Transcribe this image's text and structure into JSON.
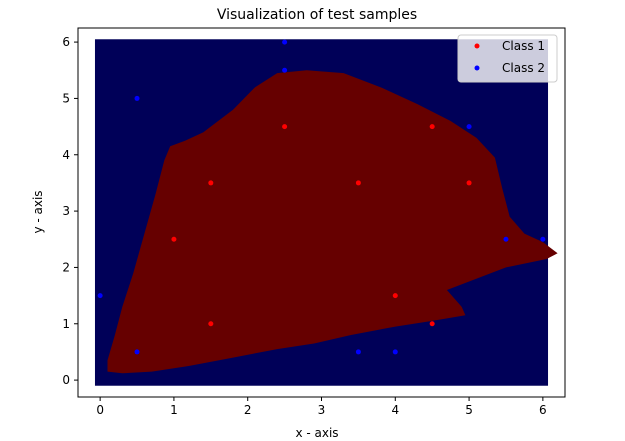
{
  "chart_data": {
    "type": "scatter",
    "title": "Visualization of test samples",
    "xlabel": "x - axis",
    "ylabel": "y - axis",
    "xlim": [
      -0.3,
      6.3
    ],
    "ylim": [
      -0.3,
      6.25
    ],
    "xticks": [
      "0",
      "1",
      "2",
      "3",
      "4",
      "5",
      "6"
    ],
    "yticks": [
      "0",
      "1",
      "2",
      "3",
      "4",
      "5",
      "6"
    ],
    "grid": false,
    "legend_position": "top-right",
    "background_region": {
      "color": "#000058",
      "x": [
        -0.07,
        6.07
      ],
      "y": [
        -0.1,
        6.05
      ]
    },
    "decision_region": {
      "color": "#660000",
      "polygon": [
        [
          0.1,
          0.15
        ],
        [
          0.1,
          0.35
        ],
        [
          0.2,
          0.8
        ],
        [
          0.3,
          1.3
        ],
        [
          0.45,
          1.9
        ],
        [
          0.6,
          2.6
        ],
        [
          0.75,
          3.3
        ],
        [
          0.87,
          3.9
        ],
        [
          0.95,
          4.15
        ],
        [
          1.15,
          4.25
        ],
        [
          1.4,
          4.4
        ],
        [
          1.8,
          4.8
        ],
        [
          2.1,
          5.2
        ],
        [
          2.4,
          5.45
        ],
        [
          2.8,
          5.5
        ],
        [
          3.3,
          5.45
        ],
        [
          3.8,
          5.2
        ],
        [
          4.3,
          4.9
        ],
        [
          4.75,
          4.6
        ],
        [
          5.1,
          4.3
        ],
        [
          5.35,
          3.95
        ],
        [
          5.45,
          3.4
        ],
        [
          5.55,
          2.9
        ],
        [
          5.75,
          2.6
        ],
        [
          6.0,
          2.45
        ],
        [
          6.2,
          2.25
        ],
        [
          6.05,
          2.15
        ],
        [
          5.5,
          2.0
        ],
        [
          5.0,
          1.75
        ],
        [
          4.7,
          1.6
        ],
        [
          4.9,
          1.3
        ],
        [
          4.95,
          1.15
        ],
        [
          4.5,
          1.05
        ],
        [
          4.0,
          0.95
        ],
        [
          3.4,
          0.8
        ],
        [
          2.9,
          0.65
        ],
        [
          2.4,
          0.55
        ],
        [
          1.8,
          0.4
        ],
        [
          1.2,
          0.25
        ],
        [
          0.7,
          0.15
        ],
        [
          0.3,
          0.12
        ]
      ]
    },
    "series": [
      {
        "name": "Class 1",
        "color": "#ff0000",
        "points": [
          [
            1,
            2.5
          ],
          [
            1.5,
            3.5
          ],
          [
            1.5,
            1
          ],
          [
            2.5,
            4.5
          ],
          [
            3.5,
            3.5
          ],
          [
            4,
            1.5
          ],
          [
            4.5,
            4.5
          ],
          [
            4.5,
            1
          ],
          [
            5,
            3.5
          ]
        ]
      },
      {
        "name": "Class 2",
        "color": "#0000ff",
        "points": [
          [
            0,
            1.5
          ],
          [
            0.5,
            5
          ],
          [
            0.5,
            0.5
          ],
          [
            2.5,
            6
          ],
          [
            2.5,
            5.5
          ],
          [
            3.5,
            0.5
          ],
          [
            4,
            0.5
          ],
          [
            5,
            4.5
          ],
          [
            5.5,
            2.5
          ],
          [
            6,
            2.5
          ]
        ]
      }
    ]
  }
}
